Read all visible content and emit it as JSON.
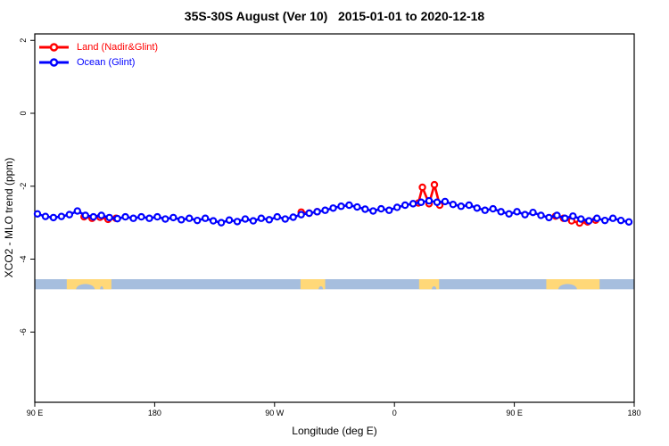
{
  "title": "35S-30S August (Ver 10)   2015-01-01 to 2020-12-18",
  "legend": {
    "items": [
      {
        "label": "Land (Nadir&Glint)",
        "series_id": "land"
      },
      {
        "label": "Ocean (Glint)",
        "series_id": "ocean"
      }
    ]
  },
  "chart_data": {
    "type": "line",
    "title": "35S-30S August (Ver 10)   2015-01-01 to 2020-12-18",
    "x_axis": {
      "label": "Longitude (deg E)",
      "range": [
        90,
        540
      ],
      "ticks": [
        {
          "x": 90,
          "label": "90 E"
        },
        {
          "x": 180,
          "label": "180"
        },
        {
          "x": 270,
          "label": "90 W"
        },
        {
          "x": 360,
          "label": "0"
        },
        {
          "x": 450,
          "label": "90 E"
        },
        {
          "x": 540,
          "label": "180"
        }
      ]
    },
    "y_axis": {
      "label": "XCO2 - MLO trend (ppm)",
      "range": [
        -7.9,
        2.2
      ],
      "ticks": [
        {
          "y": 2,
          "label": "2"
        },
        {
          "y": 0,
          "label": "0"
        },
        {
          "y": -2,
          "label": "-2"
        },
        {
          "y": -4,
          "label": "-4"
        },
        {
          "y": -6,
          "label": "-6"
        }
      ]
    },
    "grid": false,
    "legend_position": "top-left-inside",
    "series": [
      {
        "id": "land",
        "name": "Land (Nadir&Glint)",
        "color": "#ff0000",
        "marker": "open-circle",
        "segments": [
          [
            [
              127,
              -2.84
            ],
            [
              133,
              -2.88
            ],
            [
              139,
              -2.85
            ],
            [
              145,
              -2.91
            ],
            [
              151,
              -2.88
            ]
          ],
          [
            [
              290,
              -2.71
            ],
            [
              296,
              -2.74
            ],
            [
              302,
              -2.7
            ]
          ],
          [
            [
              378,
              -2.46
            ],
            [
              381,
              -2.03
            ],
            [
              386,
              -2.48
            ],
            [
              390,
              -1.96
            ],
            [
              394,
              -2.52
            ]
          ],
          [
            [
              481,
              -2.82
            ],
            [
              487,
              -2.88
            ],
            [
              493,
              -2.95
            ],
            [
              499,
              -3.01
            ],
            [
              505,
              -2.98
            ],
            [
              511,
              -2.93
            ]
          ]
        ]
      },
      {
        "id": "ocean",
        "name": "Ocean (Glint)",
        "color": "#0000ff",
        "marker": "open-circle",
        "segments": [
          [
            [
              92,
              -2.76
            ],
            [
              98,
              -2.83
            ],
            [
              104,
              -2.86
            ],
            [
              110,
              -2.83
            ],
            [
              116,
              -2.78
            ],
            [
              122,
              -2.68
            ],
            [
              128,
              -2.8
            ],
            [
              134,
              -2.84
            ],
            [
              140,
              -2.8
            ],
            [
              146,
              -2.86
            ],
            [
              152,
              -2.89
            ],
            [
              158,
              -2.84
            ],
            [
              164,
              -2.88
            ],
            [
              170,
              -2.84
            ],
            [
              176,
              -2.88
            ],
            [
              182,
              -2.84
            ],
            [
              188,
              -2.9
            ],
            [
              194,
              -2.86
            ],
            [
              200,
              -2.92
            ],
            [
              206,
              -2.88
            ],
            [
              212,
              -2.94
            ],
            [
              218,
              -2.88
            ],
            [
              224,
              -2.95
            ],
            [
              230,
              -3.0
            ],
            [
              236,
              -2.93
            ],
            [
              242,
              -2.97
            ],
            [
              248,
              -2.9
            ],
            [
              254,
              -2.95
            ],
            [
              260,
              -2.88
            ],
            [
              266,
              -2.92
            ],
            [
              272,
              -2.84
            ],
            [
              278,
              -2.9
            ],
            [
              284,
              -2.85
            ],
            [
              290,
              -2.78
            ],
            [
              296,
              -2.74
            ],
            [
              302,
              -2.7
            ],
            [
              308,
              -2.66
            ],
            [
              314,
              -2.6
            ],
            [
              320,
              -2.55
            ],
            [
              326,
              -2.52
            ],
            [
              332,
              -2.57
            ],
            [
              338,
              -2.63
            ],
            [
              344,
              -2.68
            ],
            [
              350,
              -2.62
            ],
            [
              356,
              -2.66
            ],
            [
              362,
              -2.58
            ],
            [
              368,
              -2.52
            ],
            [
              374,
              -2.48
            ],
            [
              380,
              -2.44
            ],
            [
              386,
              -2.4
            ],
            [
              392,
              -2.44
            ],
            [
              398,
              -2.42
            ],
            [
              404,
              -2.5
            ],
            [
              410,
              -2.55
            ],
            [
              416,
              -2.52
            ],
            [
              422,
              -2.6
            ],
            [
              428,
              -2.66
            ],
            [
              434,
              -2.62
            ],
            [
              440,
              -2.7
            ],
            [
              446,
              -2.76
            ],
            [
              452,
              -2.7
            ],
            [
              458,
              -2.78
            ],
            [
              464,
              -2.72
            ],
            [
              470,
              -2.8
            ],
            [
              476,
              -2.86
            ],
            [
              482,
              -2.8
            ],
            [
              488,
              -2.88
            ],
            [
              494,
              -2.82
            ],
            [
              500,
              -2.9
            ],
            [
              506,
              -2.95
            ],
            [
              512,
              -2.88
            ],
            [
              518,
              -2.94
            ],
            [
              524,
              -2.88
            ],
            [
              530,
              -2.94
            ],
            [
              536,
              -2.98
            ]
          ]
        ]
      }
    ],
    "ocean_land_strip": {
      "description": "horizontal map strip showing ocean vs land along the 35S-30S band",
      "y_from": -4.83,
      "y_to": -4.55,
      "ocean_color": "#a6bede",
      "land_color": "#ffd878",
      "land_patches": [
        [
          114,
          147.5
        ],
        [
          289.5,
          308
        ],
        [
          378.5,
          393.5
        ],
        [
          474,
          514
        ]
      ],
      "coast_notches": [
        [
          121,
          135
        ],
        [
          139,
          141.5
        ],
        [
          303,
          306.5
        ],
        [
          388,
          391.5
        ],
        [
          483,
          497
        ]
      ]
    }
  }
}
